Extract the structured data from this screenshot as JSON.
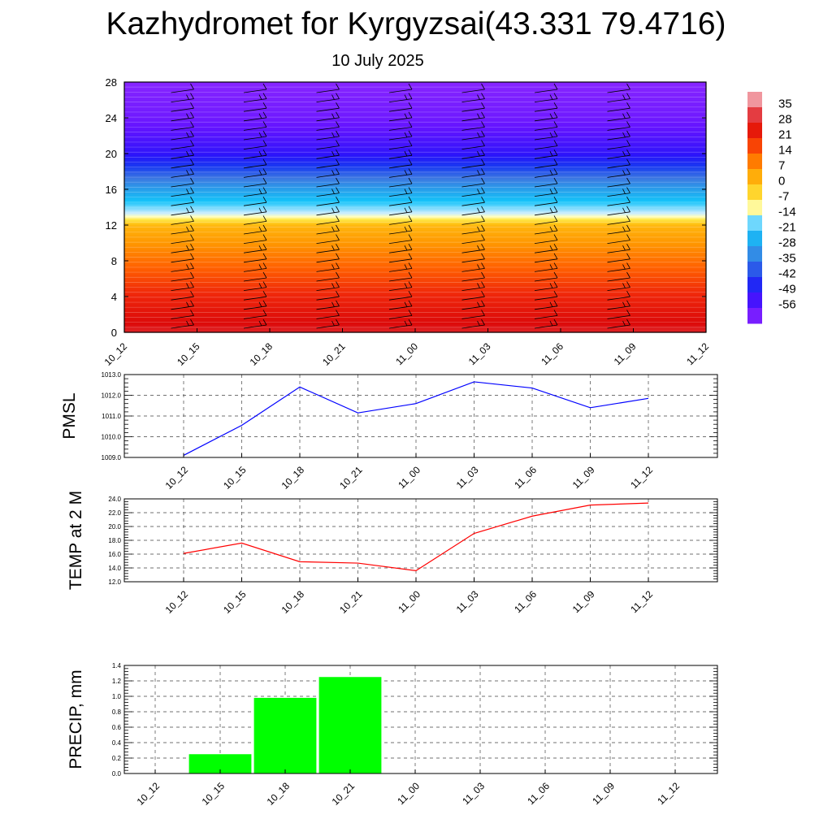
{
  "title": "Kazhydromet for Kyrgyzsai(43.331 79.4716)",
  "subtitle": "10 July 2025",
  "colors": {
    "pmsl_line": "#0000ff",
    "temp_line": "#ff0000",
    "precip_bar": "#00ff00",
    "grid": "#444444"
  },
  "chart_data": [
    {
      "type": "heatmap",
      "title": "",
      "x_categories": [
        "10_12",
        "10_15",
        "10_18",
        "10_21",
        "11_00",
        "11_03",
        "11_06",
        "11_09",
        "11_12"
      ],
      "y_ticks": [
        "0",
        "4",
        "8",
        "12",
        "16",
        "20",
        "24",
        "28"
      ],
      "ylim": [
        0,
        28
      ],
      "colorbar_labels": [
        "35",
        "28",
        "21",
        "14",
        "7",
        "0",
        "-7",
        "-14",
        "-21",
        "-28",
        "-35",
        "-42",
        "-49",
        "-56"
      ],
      "colorbar_range": [
        -63,
        42
      ],
      "temperature_profile": {
        "levels": [
          0,
          4,
          8,
          12,
          13,
          16,
          20,
          24,
          28
        ],
        "values": [
          30,
          22,
          12,
          2,
          -12,
          -28,
          -50,
          -58,
          -62
        ]
      },
      "wind_barbs": "shown"
    },
    {
      "type": "line",
      "ylabel": "PMSL",
      "categories": [
        "10_12",
        "10_15",
        "10_18",
        "10_21",
        "11_00",
        "11_03",
        "11_06",
        "11_09",
        "11_12"
      ],
      "values": [
        1009.1,
        1010.55,
        1012.4,
        1011.15,
        1011.6,
        1012.65,
        1012.35,
        1011.4,
        1011.85
      ],
      "y_ticks": [
        "1009.0",
        "1010.0",
        "1011.0",
        "1012.0",
        "1013.0"
      ],
      "ylim": [
        1009,
        1013
      ],
      "grid": true
    },
    {
      "type": "line",
      "ylabel": "TEMP at 2 M",
      "categories": [
        "10_12",
        "10_15",
        "10_18",
        "10_21",
        "11_00",
        "11_03",
        "11_06",
        "11_09",
        "11_12"
      ],
      "values": [
        16.1,
        17.6,
        14.9,
        14.7,
        13.6,
        19.0,
        21.5,
        23.1,
        23.4
      ],
      "y_ticks": [
        "12.0",
        "14.0",
        "16.0",
        "18.0",
        "20.0",
        "22.0",
        "24.0"
      ],
      "ylim": [
        12,
        24
      ],
      "grid": true
    },
    {
      "type": "bar",
      "ylabel": "PRECIP, mm",
      "categories": [
        "10_12",
        "10_15",
        "10_18",
        "10_21",
        "11_00",
        "11_03",
        "11_06",
        "11_09",
        "11_12"
      ],
      "values": [
        0,
        0.25,
        0.98,
        1.25,
        0,
        0,
        0,
        0,
        0
      ],
      "y_ticks": [
        "0.0",
        "0.2",
        "0.4",
        "0.6",
        "0.8",
        "1.0",
        "1.2",
        "1.4"
      ],
      "ylim": [
        0,
        1.4
      ],
      "grid": true
    }
  ]
}
